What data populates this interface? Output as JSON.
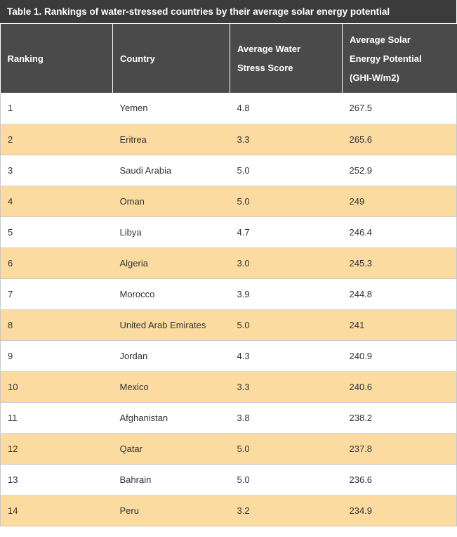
{
  "table": {
    "title": "Table 1. Rankings of water-stressed countries by their average solar energy potential",
    "headers": {
      "ranking": "Ranking",
      "country": "Country",
      "water_stress_line1": "Average Water",
      "water_stress_line2": "Stress Score",
      "solar_line1": "Average Solar",
      "solar_line2": "Energy Potential",
      "solar_line3": "(GHI-W/m2)"
    },
    "rows": [
      {
        "rank": "1",
        "country": "Yemen",
        "water_stress": "4.8",
        "solar": "267.5"
      },
      {
        "rank": "2",
        "country": "Eritrea",
        "water_stress": "3.3",
        "solar": "265.6"
      },
      {
        "rank": "3",
        "country": "Saudi Arabia",
        "water_stress": "5.0",
        "solar": "252.9"
      },
      {
        "rank": "4",
        "country": "Oman",
        "water_stress": "5.0",
        "solar": "249"
      },
      {
        "rank": "5",
        "country": "Libya",
        "water_stress": "4.7",
        "solar": "246.4"
      },
      {
        "rank": "6",
        "country": "Algeria",
        "water_stress": "3.0",
        "solar": "245.3"
      },
      {
        "rank": "7",
        "country": "Morocco",
        "water_stress": "3.9",
        "solar": "244.8"
      },
      {
        "rank": "8",
        "country": "United Arab Emirates",
        "water_stress": "5.0",
        "solar": "241"
      },
      {
        "rank": "9",
        "country": "Jordan",
        "water_stress": "4.3",
        "solar": "240.9"
      },
      {
        "rank": "10",
        "country": "Mexico",
        "water_stress": "3.3",
        "solar": "240.6"
      },
      {
        "rank": "11",
        "country": "Afghanistan",
        "water_stress": "3.8",
        "solar": "238.2"
      },
      {
        "rank": "12",
        "country": "Qatar",
        "water_stress": "5.0",
        "solar": "237.8"
      },
      {
        "rank": "13",
        "country": "Bahrain",
        "water_stress": "5.0",
        "solar": "236.6"
      },
      {
        "rank": "14",
        "country": "Peru",
        "water_stress": "3.2",
        "solar": "234.9"
      }
    ]
  },
  "colors": {
    "title_background": "#3b3b3b",
    "header_background": "#4a4a4a",
    "stripe_row": "#fbdba0",
    "plain_row": "#ffffff"
  }
}
